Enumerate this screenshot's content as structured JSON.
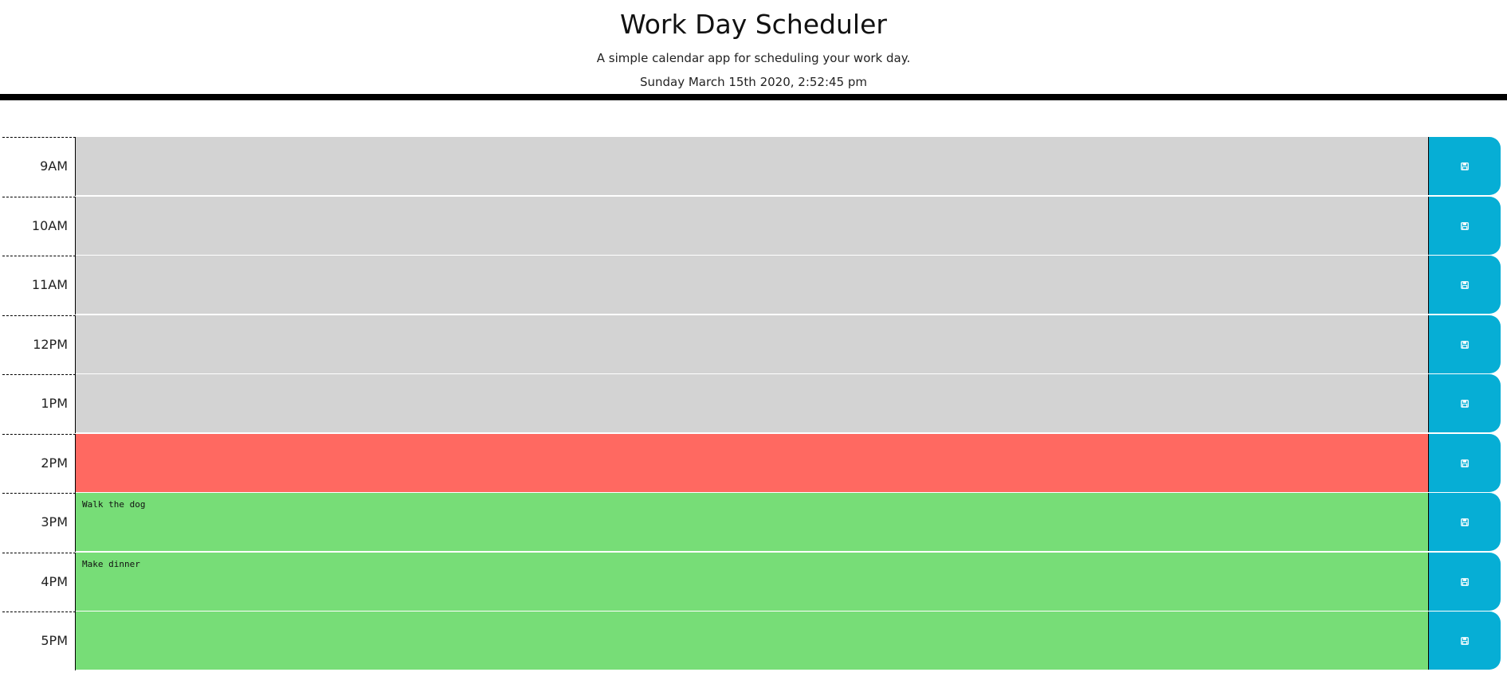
{
  "header": {
    "title": "Work Day Scheduler",
    "lead": "A simple calendar app for scheduling your work day.",
    "current_day": "Sunday March 15th 2020, 2:52:45 pm"
  },
  "colors": {
    "past": "#d3d3d3",
    "present": "#ff6961",
    "future": "#77dd77",
    "save_button": "#06aed5"
  },
  "time_blocks": [
    {
      "hour": "9AM",
      "text": "",
      "state": "past"
    },
    {
      "hour": "10AM",
      "text": "",
      "state": "past"
    },
    {
      "hour": "11AM",
      "text": "",
      "state": "past"
    },
    {
      "hour": "12PM",
      "text": "",
      "state": "past"
    },
    {
      "hour": "1PM",
      "text": "",
      "state": "past"
    },
    {
      "hour": "2PM",
      "text": "",
      "state": "present"
    },
    {
      "hour": "3PM",
      "text": "Walk the dog",
      "state": "future"
    },
    {
      "hour": "4PM",
      "text": "Make dinner",
      "state": "future"
    },
    {
      "hour": "5PM",
      "text": "",
      "state": "future"
    }
  ],
  "save_icon": "floppy-disk-icon"
}
